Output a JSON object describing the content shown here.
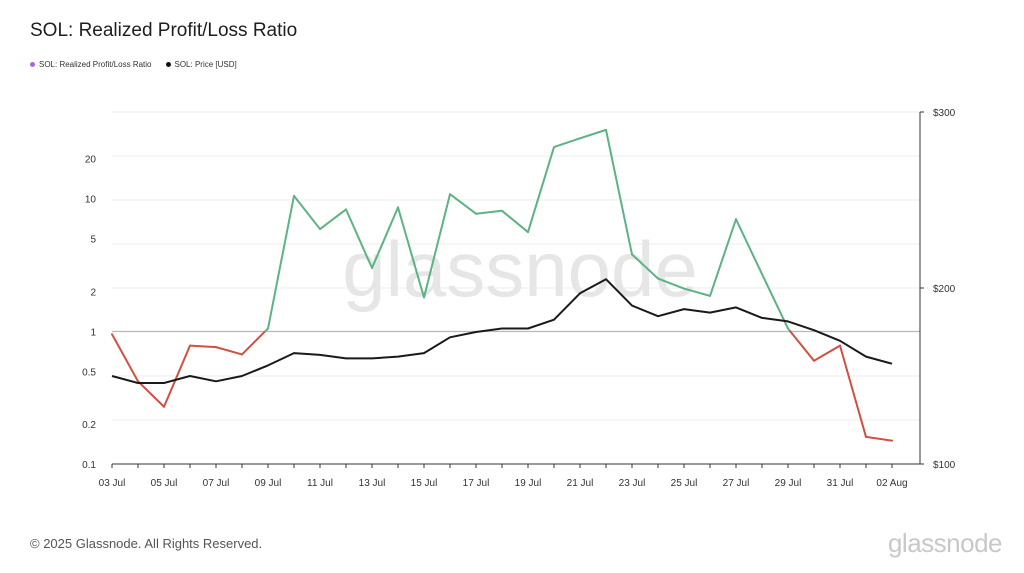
{
  "title": "SOL: Realized Profit/Loss Ratio",
  "legend": [
    {
      "label": "SOL: Realized Profit/Loss Ratio",
      "color": "#b064d8"
    },
    {
      "label": "SOL: Price [USD]",
      "color": "#111111"
    }
  ],
  "watermark": "glassnode",
  "copyright": "© 2025 Glassnode. All Rights Reserved.",
  "brand": "glassnode",
  "colors": {
    "above_one": "#5cb383",
    "below_one": "#d05041",
    "price": "#1a1a1a",
    "baseline": "#b0b0b0",
    "grid": "#eeeeee"
  },
  "chart_data": {
    "type": "line",
    "x": [
      "03 Jul",
      "04 Jul",
      "05 Jul",
      "06 Jul",
      "07 Jul",
      "08 Jul",
      "09 Jul",
      "10 Jul",
      "11 Jul",
      "12 Jul",
      "13 Jul",
      "14 Jul",
      "15 Jul",
      "16 Jul",
      "17 Jul",
      "18 Jul",
      "19 Jul",
      "20 Jul",
      "21 Jul",
      "22 Jul",
      "23 Jul",
      "24 Jul",
      "25 Jul",
      "26 Jul",
      "27 Jul",
      "28 Jul",
      "29 Jul",
      "30 Jul",
      "31 Jul",
      "01 Aug",
      "02 Aug"
    ],
    "x_tick_labels": [
      "03 Jul",
      "05 Jul",
      "07 Jul",
      "09 Jul",
      "11 Jul",
      "13 Jul",
      "15 Jul",
      "17 Jul",
      "19 Jul",
      "21 Jul",
      "23 Jul",
      "25 Jul",
      "27 Jul",
      "29 Jul",
      "31 Jul",
      "02 Aug"
    ],
    "series": [
      {
        "name": "SOL: Realized Profit/Loss Ratio",
        "axis": "left",
        "scale": "log",
        "values": [
          0.95,
          0.42,
          0.27,
          0.78,
          0.76,
          0.67,
          1.05,
          10.5,
          5.9,
          8.3,
          3.0,
          8.6,
          1.8,
          10.8,
          7.7,
          8.1,
          5.6,
          24.5,
          28.5,
          33.0,
          3.8,
          2.5,
          2.1,
          1.85,
          7.0,
          2.7,
          1.05,
          0.6,
          0.78,
          0.16,
          0.15
        ]
      },
      {
        "name": "SOL: Price [USD]",
        "axis": "right",
        "scale": "linear",
        "values": [
          150,
          146,
          146,
          150,
          147,
          150,
          156,
          163,
          162,
          160,
          160,
          161,
          163,
          172,
          175,
          177,
          177,
          182,
          197,
          205,
          190,
          184,
          188,
          186,
          189,
          183,
          181,
          176,
          170,
          161,
          157
        ]
      }
    ],
    "y_left": {
      "scale": "log",
      "ticks": [
        0.1,
        0.2,
        0.5,
        1,
        2,
        5,
        10,
        20
      ],
      "tick_labels": [
        "0.1",
        "0.2",
        "0.5",
        "1",
        "2",
        "5",
        "10",
        "20"
      ],
      "range": [
        0.1,
        45
      ]
    },
    "y_right": {
      "scale": "linear",
      "ticks": [
        100,
        200,
        300
      ],
      "tick_labels": [
        "$100",
        "$200",
        "$300"
      ],
      "range": [
        100,
        300
      ]
    },
    "baseline": 1,
    "grid": "horizontal"
  }
}
